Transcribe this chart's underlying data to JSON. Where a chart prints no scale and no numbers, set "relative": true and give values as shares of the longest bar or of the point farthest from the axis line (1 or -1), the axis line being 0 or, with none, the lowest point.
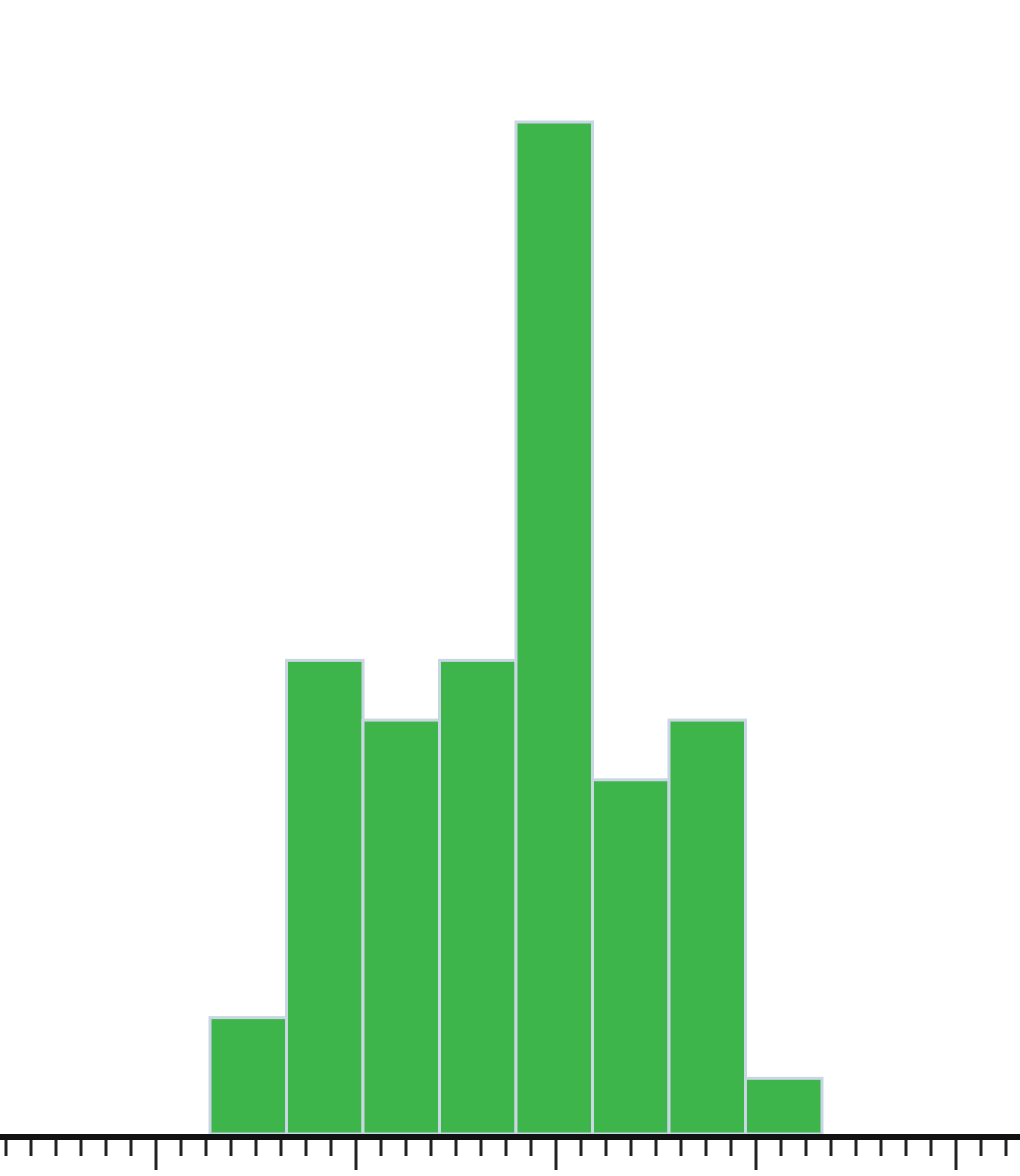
{
  "chart_data": {
    "type": "bar",
    "relative": true,
    "categories": [
      null,
      null,
      null,
      null,
      null,
      null,
      null,
      null
    ],
    "values": [
      0.115,
      0.468,
      0.409,
      0.468,
      1,
      0.35,
      0.409,
      0.055
    ],
    "color": "#3db54a",
    "grid": false
  }
}
